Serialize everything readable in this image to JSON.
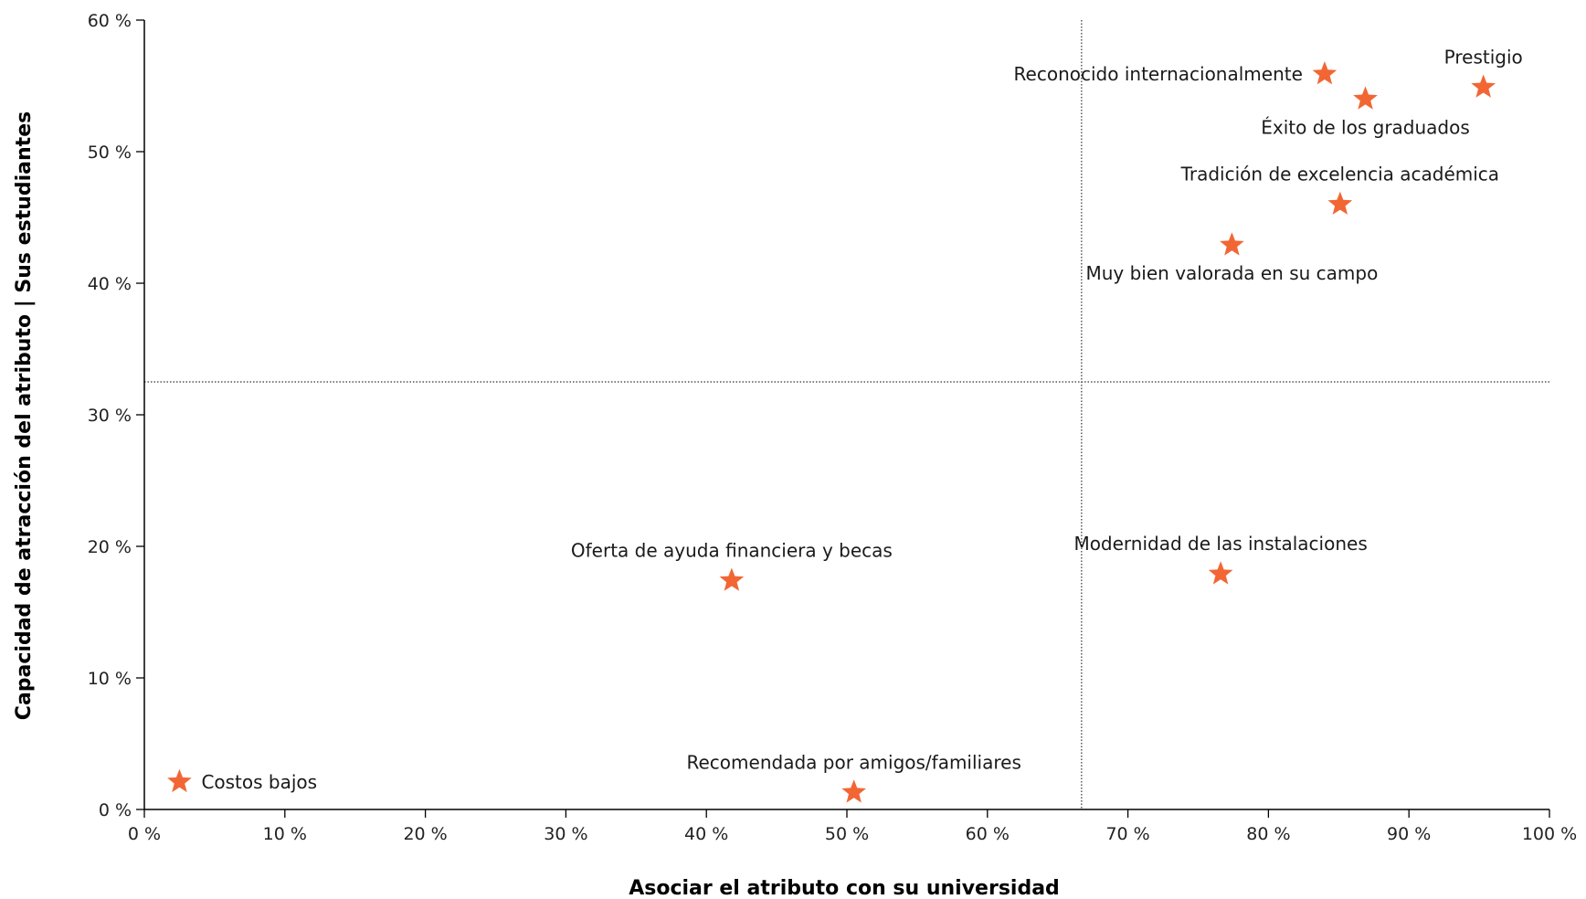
{
  "chart_data": {
    "type": "scatter",
    "xlabel": "Asociar el atributo con su universidad",
    "ylabel": "Capacidad de atracción del atributo | Sus estudiantes",
    "xlim": [
      0,
      100
    ],
    "ylim": [
      0,
      60
    ],
    "x_ticks": [
      0,
      10,
      20,
      30,
      40,
      50,
      60,
      70,
      80,
      90,
      100
    ],
    "y_ticks": [
      0,
      10,
      20,
      30,
      40,
      50,
      60
    ],
    "x_tick_labels": [
      "0 %",
      "10 %",
      "20 %",
      "30 %",
      "40 %",
      "50 %",
      "60 %",
      "70 %",
      "80 %",
      "90 %",
      "100 %"
    ],
    "y_tick_labels": [
      "0 %",
      "10 %",
      "20 %",
      "30 %",
      "40 %",
      "50 %",
      "60 %"
    ],
    "reference_lines": {
      "x": 66.7,
      "y": 32.5
    },
    "marker": "star",
    "marker_color": "#f26634",
    "grid": false,
    "points": [
      {
        "label": "Prestigio",
        "x": 95.3,
        "y": 54.9,
        "label_pos": "above"
      },
      {
        "label": "Reconocido internacionalmente",
        "x": 84.0,
        "y": 55.9,
        "label_pos": "left"
      },
      {
        "label": "Éxito de los graduados",
        "x": 86.9,
        "y": 54.0,
        "label_pos": "below"
      },
      {
        "label": "Tradición de excelencia académica",
        "x": 85.1,
        "y": 46.0,
        "label_pos": "above"
      },
      {
        "label": "Muy bien valorada en su campo",
        "x": 77.4,
        "y": 42.9,
        "label_pos": "below"
      },
      {
        "label": "Modernidad de las instalaciones",
        "x": 76.6,
        "y": 17.9,
        "label_pos": "above"
      },
      {
        "label": "Oferta de ayuda financiera y becas",
        "x": 41.8,
        "y": 17.4,
        "label_pos": "above"
      },
      {
        "label": "Recomendada por amigos/familiares",
        "x": 50.5,
        "y": 1.3,
        "label_pos": "above"
      },
      {
        "label": "Costos bajos",
        "x": 2.5,
        "y": 2.1,
        "label_pos": "right"
      }
    ]
  }
}
